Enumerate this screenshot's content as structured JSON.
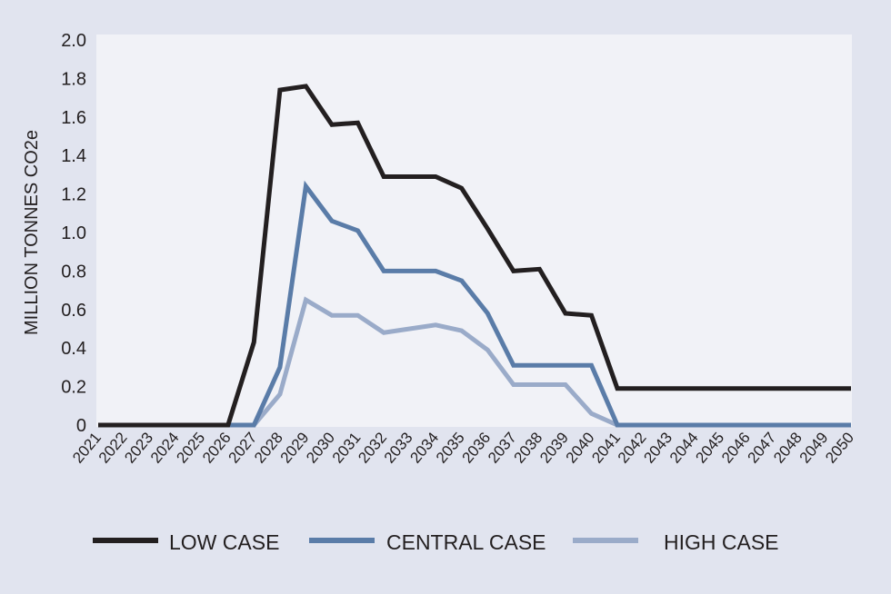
{
  "chart_data": {
    "type": "line",
    "title": "",
    "xlabel": "",
    "ylabel": "MILLION TONNES CO2e",
    "ylim": [
      0,
      2.0
    ],
    "yticks": [
      0,
      0.2,
      0.4,
      0.6,
      0.8,
      1.0,
      1.2,
      1.4,
      1.6,
      1.8,
      2.0
    ],
    "ytick_labels": [
      "0",
      "0.2",
      "0.4",
      "0.6",
      "0.8",
      "1.0",
      "1.2",
      "1.4",
      "1.6",
      "1.8",
      "2.0"
    ],
    "x": [
      "2021",
      "2022",
      "2023",
      "2024",
      "2025",
      "2026",
      "2027",
      "2028",
      "2029",
      "2030",
      "2031",
      "2032",
      "2033",
      "2034",
      "2035",
      "2036",
      "2037",
      "2038",
      "2039",
      "2040",
      "2041",
      "2042",
      "2043",
      "2044",
      "2045",
      "2046",
      "2047",
      "2048",
      "2049",
      "2050"
    ],
    "grid": false,
    "legend_position": "bottom",
    "series": [
      {
        "name": "LOW CASE",
        "color": "#231f20",
        "values": [
          0,
          0,
          0,
          0,
          0,
          0,
          0.43,
          1.74,
          1.76,
          1.56,
          1.57,
          1.29,
          1.29,
          1.29,
          1.23,
          1.02,
          0.8,
          0.81,
          0.58,
          0.57,
          0.19,
          0.19,
          0.19,
          0.19,
          0.19,
          0.19,
          0.19,
          0.19,
          0.19,
          0.19
        ]
      },
      {
        "name": "CENTRAL CASE",
        "color": "#5a7ca8",
        "values": [
          0,
          0,
          0,
          0,
          0,
          0,
          0,
          0.3,
          1.24,
          1.06,
          1.01,
          0.8,
          0.8,
          0.8,
          0.75,
          0.58,
          0.31,
          0.31,
          0.31,
          0.31,
          0,
          0,
          0,
          0,
          0,
          0,
          0,
          0,
          0,
          0
        ]
      },
      {
        "name": "HIGH CASE",
        "color": "#9aabc9",
        "values": [
          0,
          0,
          0,
          0,
          0,
          0,
          0,
          0.16,
          0.65,
          0.57,
          0.57,
          0.48,
          0.5,
          0.52,
          0.49,
          0.39,
          0.21,
          0.21,
          0.21,
          0.06,
          0,
          0,
          0,
          0,
          0,
          0,
          0,
          0,
          0,
          0
        ]
      }
    ]
  },
  "colors": {
    "page_background": "#e1e4ef",
    "plot_background": "#f1f2f7"
  }
}
